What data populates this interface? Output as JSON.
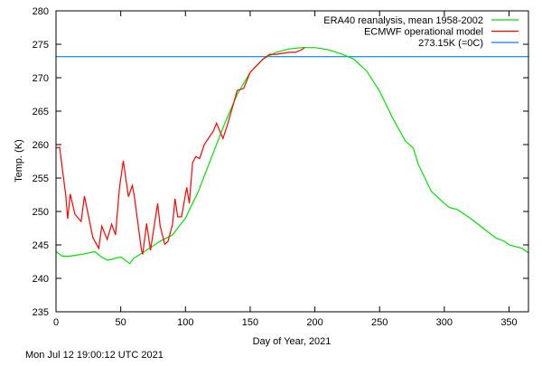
{
  "chart_data": {
    "type": "line",
    "title": "",
    "xlabel": "Day of Year, 2021",
    "ylabel": "Temp. (K)",
    "xlim": [
      0,
      365
    ],
    "ylim": [
      235,
      280
    ],
    "xticks": [
      0,
      50,
      100,
      150,
      200,
      250,
      300,
      350
    ],
    "yticks": [
      235,
      240,
      245,
      250,
      255,
      260,
      265,
      270,
      275,
      280
    ],
    "grid": false,
    "legend_position": "top-right",
    "series": [
      {
        "name": "ERA40 reanalysis, mean 1958-2002",
        "color": "#00e000",
        "x": [
          0,
          5,
          10,
          20,
          30,
          35,
          40,
          50,
          57,
          60,
          70,
          80,
          90,
          100,
          110,
          120,
          130,
          140,
          150,
          160,
          170,
          180,
          190,
          200,
          210,
          220,
          230,
          240,
          250,
          260,
          270,
          276,
          280,
          290,
          300,
          304,
          310,
          320,
          330,
          340,
          346,
          350,
          360,
          365
        ],
        "y": [
          244,
          243.3,
          243.3,
          243.6,
          244,
          243.2,
          242.7,
          243.2,
          242.2,
          243,
          244.2,
          245.5,
          246.5,
          249,
          253,
          258,
          263,
          267.5,
          270.8,
          272.8,
          273.8,
          274.3,
          274.5,
          274.5,
          274.2,
          273.6,
          272.8,
          271,
          268,
          264,
          260.5,
          259.5,
          257,
          253,
          251.2,
          250.6,
          250.3,
          249,
          247.5,
          246,
          245.6,
          245,
          244.5,
          243.8
        ]
      },
      {
        "name": "ECMWF operational model",
        "color": "#ff0000",
        "x": [
          0,
          2.8,
          7.6,
          9,
          11,
          14.6,
          19.4,
          22,
          28.5,
          33,
          35.4,
          39.6,
          43,
          46,
          49,
          52,
          56,
          59,
          60.5,
          66,
          67,
          70,
          73,
          78.5,
          80.5,
          84,
          86.5,
          90,
          92,
          94,
          97,
          101,
          103,
          105.5,
          108,
          111,
          114.5,
          121.5,
          124,
          129,
          132.5,
          140,
          145,
          150,
          160,
          165,
          170,
          180,
          185,
          190,
          192
        ],
        "y": [
          259.5,
          259.6,
          252.3,
          248.9,
          252.6,
          249.6,
          248.5,
          252.3,
          246.1,
          244.5,
          247.8,
          245.8,
          248.1,
          246.5,
          253.5,
          257.6,
          252.2,
          253.9,
          252.3,
          244.2,
          243.6,
          248.2,
          244.2,
          251.2,
          247.8,
          245.1,
          245.5,
          248.1,
          251.9,
          249.2,
          249.2,
          253.6,
          251.2,
          257.3,
          258.2,
          257.9,
          260,
          262,
          263.2,
          260.9,
          263,
          268.1,
          268.4,
          270.8,
          272.8,
          273.5,
          273.5,
          273.8,
          273.8,
          274.2,
          274.5
        ]
      },
      {
        "name": "273.15K (=0C)",
        "color": "#0080ff",
        "x": [
          0,
          365
        ],
        "y": [
          273.15,
          273.15
        ]
      }
    ]
  },
  "footer": {
    "timestamp": "Mon Jul 12 19:00:12 UTC 2021"
  }
}
